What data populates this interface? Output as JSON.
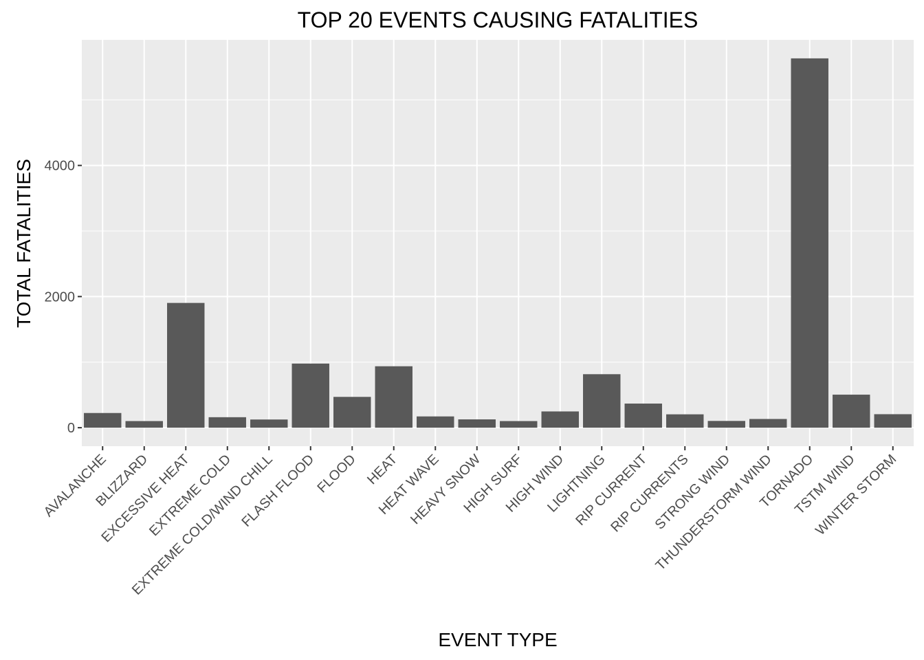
{
  "chart_data": {
    "type": "bar",
    "title": "TOP 20 EVENTS CAUSING FATALITIES",
    "xlabel": "EVENT TYPE",
    "ylabel": "TOTAL FATALITIES",
    "categories": [
      "AVALANCHE",
      "BLIZZARD",
      "EXCESSIVE HEAT",
      "EXTREME COLD",
      "EXTREME COLD/WIND CHILL",
      "FLASH FLOOD",
      "FLOOD",
      "HEAT",
      "HEAT WAVE",
      "HEAVY SNOW",
      "HIGH SURF",
      "HIGH WIND",
      "LIGHTNING",
      "RIP CURRENT",
      "RIP CURRENTS",
      "STRONG WIND",
      "THUNDERSTORM WIND",
      "TORNADO",
      "TSTM WIND",
      "WINTER STORM"
    ],
    "values": [
      224,
      101,
      1903,
      160,
      125,
      978,
      470,
      937,
      172,
      127,
      101,
      248,
      816,
      368,
      204,
      103,
      133,
      5633,
      504,
      206
    ],
    "yticks": [
      0,
      2000,
      4000
    ],
    "ylim": [
      -282,
      5915
    ],
    "grid": true,
    "colors": {
      "bar": "#595959",
      "panel": "#ebebeb",
      "grid": "#ffffff"
    }
  }
}
